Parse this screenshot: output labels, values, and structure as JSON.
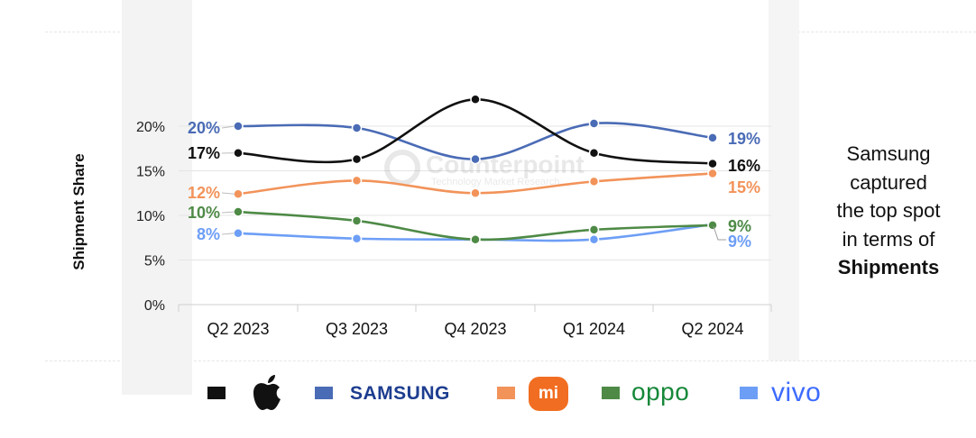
{
  "chart_data": {
    "type": "line",
    "categories": [
      "Q2 2023",
      "Q3 2023",
      "Q4 2023",
      "Q1 2024",
      "Q2 2024"
    ],
    "ylabel": "Shipment Share",
    "ylim": [
      0,
      20
    ],
    "y_ticks": [
      "0%",
      "5%",
      "10%",
      "15%",
      "20%"
    ],
    "y_tick_values": [
      0,
      5,
      10,
      15,
      20
    ],
    "grid": true,
    "series": [
      {
        "name": "Apple",
        "color": "#111111",
        "values": [
          17,
          16.3,
          23,
          17,
          15.8
        ],
        "start_label": "17%",
        "end_label": "16%"
      },
      {
        "name": "Samsung",
        "color": "#4a6bb5",
        "values": [
          20,
          19.8,
          16.3,
          20.3,
          18.7
        ],
        "start_label": "20%",
        "end_label": "19%"
      },
      {
        "name": "Xiaomi",
        "color": "#f2935a",
        "values": [
          12.4,
          13.9,
          12.5,
          13.8,
          14.7
        ],
        "start_label": "12%",
        "end_label": "15%"
      },
      {
        "name": "OPPO",
        "color": "#4e8a46",
        "values": [
          10.4,
          9.4,
          7.3,
          8.4,
          8.9
        ],
        "start_label": "10%",
        "end_label": "9%"
      },
      {
        "name": "vivo",
        "color": "#6d9ef6",
        "values": [
          8,
          7.4,
          7.3,
          7.3,
          9
        ],
        "start_label": "8%",
        "end_label": "9%"
      }
    ],
    "watermark": {
      "title": "Counterpoint",
      "subtitle": "Technology Market Research"
    }
  },
  "annotation": {
    "lines": [
      "Samsung",
      "captured",
      "the top spot",
      "in terms of"
    ],
    "bold_line": "Shipments"
  },
  "legend": {
    "items": [
      {
        "brand": "Apple",
        "icon": "apple-logo-icon",
        "color": "#111111"
      },
      {
        "brand": "Samsung",
        "text": "SAMSUNG",
        "color": "#4a6bb5",
        "logo_color": "#1d3d8f"
      },
      {
        "brand": "Xiaomi",
        "text": "mi",
        "icon": "mi-logo-icon",
        "color": "#f2935a",
        "logo_color": "#f16d21"
      },
      {
        "brand": "OPPO",
        "text": "oppo",
        "color": "#4e8a46",
        "logo_color": "#17883a"
      },
      {
        "brand": "vivo",
        "text": "vivo",
        "color": "#6d9ef6",
        "logo_color": "#3d6bff"
      }
    ]
  }
}
